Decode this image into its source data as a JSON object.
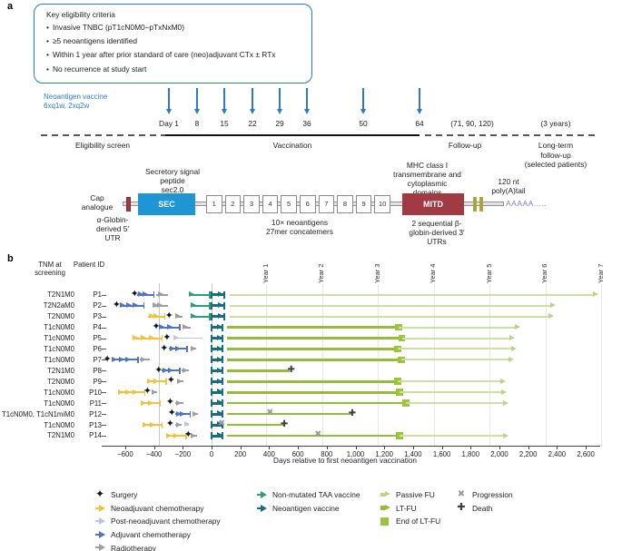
{
  "panel_a": {
    "label": "a",
    "eligibility": {
      "title": "Key eligibility criteria",
      "bullets": [
        "Invasive TNBC (pT1cN0M0–pTxNxM0)",
        "≥5 neoantigens identified",
        "Within 1 year after prior standard of care (neo)adjuvant CTx ± RTx",
        "No recurrence at study start"
      ]
    },
    "timeline": {
      "vaccine_label": "Neoantigen vaccine",
      "vaccine_sublabel": "6xq1w, 2xq2w",
      "arrow_color": "#2d7cc1",
      "doses": [
        {
          "label": "Day 1",
          "x": 185
        },
        {
          "label": "8",
          "x": 216
        },
        {
          "label": "15",
          "x": 246
        },
        {
          "label": "22",
          "x": 277
        },
        {
          "label": "29",
          "x": 307
        },
        {
          "label": "36",
          "x": 337
        },
        {
          "label": "50",
          "x": 399
        },
        {
          "label": "64",
          "x": 461
        }
      ],
      "followup_label": "(71, 90, 120)",
      "longterm_label": "(3 years)",
      "phases": [
        {
          "label": "Eligibility screen",
          "x": 113,
          "w": 90
        },
        {
          "label": "Vaccination",
          "x": 322,
          "w": 90
        },
        {
          "label": "Follow-up",
          "x": 512,
          "w": 70
        },
        {
          "label": "Long-term\nfollow-up\n(selected patients)",
          "x": 612,
          "w": 92
        }
      ]
    },
    "construct": {
      "cap_label": "Cap\nanalogue",
      "sec_top_label": "Secretory signal\npeptide\nsec2.0",
      "sec_box": "SEC",
      "utr5_label": "α-Globin-\nderived 5′\nUTR",
      "neoantigen_boxes": [
        "1",
        "2",
        "3",
        "4",
        "5",
        "6",
        "7",
        "8",
        "9",
        "10"
      ],
      "neoantigen_label": "10× neoantigens\n27mer concatemers",
      "mitd_top_label": "MHC class I\ntransmembrane and\ncytoplasmic\ndomains",
      "mitd_box": "MITD",
      "utr3_label": "2 sequential β-\nglobin-derived 3′\nUTRs",
      "polya_top_label": "120 nt\npoly(A)tail",
      "polya_text": "AAAAA.....",
      "colors": {
        "sec": "#2095d3",
        "mitd": "#a13a42",
        "cap": "#a13a42",
        "utr_bar": "#7ab648",
        "utr_bar_border": "#d4973a",
        "polya": "#8b79c9"
      }
    }
  },
  "panel_b": {
    "label": "b"
  },
  "chart_data": {
    "type": "swimmer",
    "xlabel": "Days relative to first neoantigen vaccination",
    "col_headers": [
      "TNM at screening",
      "Patient ID"
    ],
    "x_ticks": [
      "−600",
      "−400",
      "−200",
      "0",
      "200",
      "400",
      "600",
      "800",
      "1,000",
      "1,200",
      "1,400",
      "1,600",
      "1,800",
      "2,000",
      "2,200",
      "2,400",
      "2,600"
    ],
    "x_range": [
      -763,
      2700
    ],
    "ref_line_days": [
      -365,
      0
    ],
    "year_marks": [
      {
        "label": "Year 1",
        "day": 380
      },
      {
        "label": "Year 2",
        "day": 768
      },
      {
        "label": "Year 3",
        "day": 1156
      },
      {
        "label": "Year 4",
        "day": 1544
      },
      {
        "label": "Year 5",
        "day": 1932
      },
      {
        "label": "Year 6",
        "day": 2320
      },
      {
        "label": "Year 7",
        "day": 2708
      }
    ],
    "colors": {
      "surgery": "#141414",
      "neoadj": "#efc33b",
      "postneoadj": "#b9c7e3",
      "adj": "#5273c1",
      "radio": "#9c9ea1",
      "taa": "#2f9e77",
      "neo": "#166f7c",
      "passive": "#ccdfa4",
      "passive_arrow": "#bcd389",
      "ltfu": "#95bd3c",
      "square": "#9cc43e",
      "progression": "#9b9b9b",
      "death": "#3e3e3e"
    },
    "patients": [
      {
        "tnm": "T2N1M0",
        "id": "P1",
        "events": [
          {
            "type": "passive",
            "start": 125,
            "end": 2690
          },
          {
            "type": "adj",
            "start": -515,
            "end": -400
          },
          {
            "type": "radio",
            "start": -385,
            "end": -300
          },
          {
            "type": "taa",
            "start": -155,
            "end": -10
          },
          {
            "type": "neo",
            "start": 0,
            "end": 88
          },
          {
            "type": "surgery",
            "day": -535
          }
        ]
      },
      {
        "tnm": "T2N2aM0",
        "id": "P2",
        "events": [
          {
            "type": "passive",
            "start": 125,
            "end": 2390
          },
          {
            "type": "adj",
            "start": -640,
            "end": -470
          },
          {
            "type": "radio",
            "start": -410,
            "end": -305
          },
          {
            "type": "taa",
            "start": -145,
            "end": -10
          },
          {
            "type": "neo",
            "start": 0,
            "end": 88
          },
          {
            "type": "surgery",
            "day": -660
          }
        ]
      },
      {
        "tnm": "T2N0M0",
        "id": "P3",
        "events": [
          {
            "type": "passive",
            "start": 125,
            "end": 2380
          },
          {
            "type": "neoadj",
            "start": -440,
            "end": -325
          },
          {
            "type": "radio",
            "start": -255,
            "end": -200
          },
          {
            "type": "taa",
            "start": -145,
            "end": -10
          },
          {
            "type": "neo",
            "start": 0,
            "end": 88
          },
          {
            "type": "surgery",
            "day": -295
          }
        ]
      },
      {
        "tnm": "T1cN0M0",
        "id": "P4",
        "events": [
          {
            "type": "ltfu",
            "start": 110,
            "end": 1300,
            "end_marker": "square"
          },
          {
            "type": "passive",
            "start": 1300,
            "end": 2145
          },
          {
            "type": "adj",
            "start": -365,
            "end": -220
          },
          {
            "type": "radio",
            "start": -205,
            "end": -148
          },
          {
            "type": "neo",
            "start": 0,
            "end": 78
          },
          {
            "type": "surgery",
            "day": -385
          }
        ]
      },
      {
        "tnm": "T1cN0M0",
        "id": "P5",
        "events": [
          {
            "type": "ltfu",
            "start": 110,
            "end": 1322,
            "end_marker": "square"
          },
          {
            "type": "passive",
            "start": 1322,
            "end": 2110
          },
          {
            "type": "neoadj",
            "start": -550,
            "end": -345
          },
          {
            "type": "postneoadj",
            "start": -262,
            "end": -65
          },
          {
            "type": "neo",
            "start": 0,
            "end": 78
          },
          {
            "type": "surgery",
            "day": -310
          }
        ]
      },
      {
        "tnm": "T1cN0M0",
        "id": "P6",
        "events": [
          {
            "type": "ltfu",
            "start": 110,
            "end": 1291,
            "end_marker": "square"
          },
          {
            "type": "passive",
            "start": 1291,
            "end": 2122
          },
          {
            "type": "adj",
            "start": -295,
            "end": -170
          },
          {
            "type": "radio",
            "start": -148,
            "end": -105
          },
          {
            "type": "neo",
            "start": 0,
            "end": 78
          },
          {
            "type": "surgery",
            "day": -330
          }
        ]
      },
      {
        "tnm": "T1cN0M0",
        "id": "P7",
        "events": [
          {
            "type": "ltfu",
            "start": 110,
            "end": 1317,
            "end_marker": "square"
          },
          {
            "type": "passive",
            "start": 1317,
            "end": 2101
          },
          {
            "type": "adj",
            "start": -695,
            "end": -512
          },
          {
            "type": "radio",
            "start": -500,
            "end": -430
          },
          {
            "type": "neo",
            "start": 0,
            "end": 78
          },
          {
            "type": "surgery",
            "day": -725
          }
        ]
      },
      {
        "tnm": "T2N1M0",
        "id": "P8",
        "events": [
          {
            "type": "ltfu",
            "start": 110,
            "end": 545
          },
          {
            "type": "adj",
            "start": -345,
            "end": -220
          },
          {
            "type": "radio",
            "start": -208,
            "end": -155
          },
          {
            "type": "neo",
            "start": 0,
            "end": 78
          },
          {
            "type": "surgery",
            "day": -368
          },
          {
            "type": "death",
            "day": 553
          }
        ]
      },
      {
        "tnm": "T2N0M0",
        "id": "P9",
        "events": [
          {
            "type": "ltfu",
            "start": 110,
            "end": 1295,
            "end_marker": "square"
          },
          {
            "type": "passive",
            "start": 1295,
            "end": 2042
          },
          {
            "type": "neoadj",
            "start": -450,
            "end": -315
          },
          {
            "type": "radio",
            "start": -240,
            "end": -198
          },
          {
            "type": "neo",
            "start": 0,
            "end": 78
          },
          {
            "type": "surgery",
            "day": -282
          }
        ]
      },
      {
        "tnm": "T1cN0M0",
        "id": "P10",
        "events": [
          {
            "type": "ltfu",
            "start": 110,
            "end": 1306,
            "end_marker": "square"
          },
          {
            "type": "passive",
            "start": 1306,
            "end": 2050
          },
          {
            "type": "neoadj",
            "start": -650,
            "end": -465
          },
          {
            "type": "radio",
            "start": -418,
            "end": -376
          },
          {
            "type": "neo",
            "start": 0,
            "end": 78
          },
          {
            "type": "surgery",
            "day": -446
          }
        ]
      },
      {
        "tnm": "T1cN0M0",
        "id": "P11",
        "events": [
          {
            "type": "ltfu",
            "start": 110,
            "end": 1348,
            "end_marker": "square"
          },
          {
            "type": "passive",
            "start": 1348,
            "end": 2063
          },
          {
            "type": "neoadj",
            "start": -492,
            "end": -355
          },
          {
            "type": "radio",
            "start": -250,
            "end": -198
          },
          {
            "type": "neo",
            "start": 0,
            "end": 78
          },
          {
            "type": "surgery",
            "day": -288
          }
        ]
      },
      {
        "tnm": "T1cN0M0, T1cN1miM0",
        "id": "P12",
        "events": [
          {
            "type": "ltfu",
            "start": 110,
            "end": 970
          },
          {
            "type": "adj",
            "start": -250,
            "end": -148
          },
          {
            "type": "radio",
            "start": -134,
            "end": -95
          },
          {
            "type": "neo",
            "start": 0,
            "end": 78
          },
          {
            "type": "surgery",
            "day": -276
          },
          {
            "type": "progression",
            "day": 405
          },
          {
            "type": "death",
            "day": 978
          }
        ]
      },
      {
        "tnm": "T1cN0M0",
        "id": "P13",
        "events": [
          {
            "type": "ltfu",
            "start": 110,
            "end": 497
          },
          {
            "type": "neoadj",
            "start": -480,
            "end": -345
          },
          {
            "type": "radio",
            "start": -250,
            "end": -208
          },
          {
            "type": "postneoadj",
            "start": -188,
            "end": -155
          },
          {
            "type": "neo",
            "start": 0,
            "end": 78
          },
          {
            "type": "surgery",
            "day": -288
          },
          {
            "type": "progression",
            "day": 70
          },
          {
            "type": "death",
            "day": 505
          }
        ]
      },
      {
        "tnm": "T2N1M0",
        "id": "P14",
        "events": [
          {
            "type": "ltfu",
            "start": 110,
            "end": 1306,
            "end_marker": "square"
          },
          {
            "type": "passive",
            "start": 1306,
            "end": 2060
          },
          {
            "type": "neoadj",
            "start": -315,
            "end": -177
          },
          {
            "type": "radio",
            "start": -145,
            "end": -103
          },
          {
            "type": "neo",
            "start": 0,
            "end": 78
          },
          {
            "type": "surgery",
            "day": -162
          },
          {
            "type": "progression",
            "day": 740
          }
        ]
      }
    ],
    "legend": {
      "columns": [
        {
          "x": 105,
          "items": [
            {
              "type": "surgery",
              "label": "Surgery"
            },
            {
              "type": "neoadj",
              "label": "Neoadjuvant chemotherapy"
            },
            {
              "type": "postneoadj",
              "label": "Post-neoadjuvant chemotherapy"
            },
            {
              "type": "adj",
              "label": "Adjuvant chemotherapy"
            },
            {
              "type": "radio",
              "label": "Radiotherapy"
            }
          ]
        },
        {
          "x": 283,
          "items": [
            {
              "type": "taa",
              "label": "Non-mutated TAA vaccine"
            },
            {
              "type": "neo",
              "label": "Neoantigen vaccine"
            }
          ]
        },
        {
          "x": 419,
          "items": [
            {
              "type": "passive",
              "label": "Passive FU"
            },
            {
              "type": "ltfu",
              "label": "LT-FU"
            },
            {
              "type": "square",
              "label": "End of LT-FU"
            }
          ]
        },
        {
          "x": 503,
          "items": [
            {
              "type": "progression",
              "label": "Progression"
            },
            {
              "type": "death",
              "label": "Death"
            }
          ]
        }
      ]
    }
  }
}
